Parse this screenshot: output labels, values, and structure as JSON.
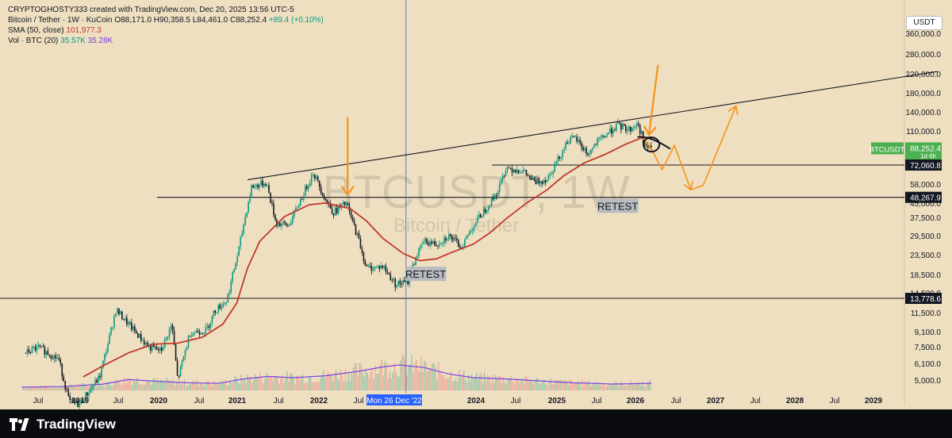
{
  "header": {
    "title_line": "CRYPTOGHOSTY333 created with TradingView.com, Dec 20, 2025 13:56 UTC-5",
    "symbol": "Bitcoin / Tether · 1W · KuCoin",
    "ohlc": "O88,171.0  H90,358.5  L84,461.0  C88,252.4",
    "change": "+89.4 (+0.10%)",
    "sma_label": "SMA (50, close)",
    "sma_value": "101,977.3",
    "vol_label": "Vol · BTC (20)",
    "vol_value1": "35.57K",
    "vol_value2": "35.28K"
  },
  "currency": "USDT",
  "watermark": {
    "main": "BTCUSDT, 1W",
    "sub": "Bitcoin / Tether"
  },
  "footer": {
    "logo_text": "TradingView"
  },
  "colors": {
    "background": "#eedfc0",
    "candle_up": "#089981",
    "candle_down": "#131722",
    "sma": "#c0392b",
    "arrow": "#f7931a",
    "volume_ma": "#7b3fe4",
    "crosshair": "#2962ff",
    "last_price": "#4caf50"
  },
  "chart_data": {
    "type": "candlestick",
    "scale": "log",
    "x_ticks": [
      "Jul",
      "2019",
      "Jul",
      "2020",
      "Jul",
      "2021",
      "Jul",
      "2022",
      "Jul",
      "Mon 26 Dec '22",
      "2024",
      "Jul",
      "2025",
      "Jul",
      "2026",
      "Jul",
      "2027",
      "Jul",
      "2028",
      "Jul",
      "2029"
    ],
    "y_ticks": [
      "360,000.0",
      "280,000.0",
      "220,000.0",
      "180,000.0",
      "140,000.0",
      "110,000.0",
      "58,000.0",
      "45,000.0",
      "37,500.0",
      "29,500.0",
      "23,500.0",
      "18,500.0",
      "14,500.0",
      "11,500.0",
      "9,100.0",
      "7,500.0",
      "6,100.0",
      "5,000.0"
    ],
    "price_labels": [
      {
        "text": "BTCUSDT",
        "value": 88252.4
      },
      {
        "text": "88,252.4",
        "value": 88252.4,
        "sub": "1d 6h"
      },
      {
        "text": "72,060.8",
        "value": 72060.8
      },
      {
        "text": "48,267.9",
        "value": 48267.9
      },
      {
        "text": "13,778.6",
        "value": 13778.6
      }
    ],
    "horizontal_levels": [
      72060.8,
      48267.9,
      13778.6
    ],
    "path_points": [
      [
        2018.35,
        7000
      ],
      [
        2018.5,
        7500
      ],
      [
        2018.75,
        6500
      ],
      [
        2018.88,
        3800
      ],
      [
        2019.0,
        3700
      ],
      [
        2019.25,
        5200
      ],
      [
        2019.45,
        12000
      ],
      [
        2019.6,
        10000
      ],
      [
        2019.85,
        7500
      ],
      [
        2020.0,
        7200
      ],
      [
        2020.13,
        10000
      ],
      [
        2020.2,
        5000
      ],
      [
        2020.35,
        9000
      ],
      [
        2020.55,
        9300
      ],
      [
        2020.65,
        11800
      ],
      [
        2020.8,
        13500
      ],
      [
        2020.95,
        26000
      ],
      [
        2021.0,
        34000
      ],
      [
        2021.1,
        55000
      ],
      [
        2021.28,
        58000
      ],
      [
        2021.4,
        35000
      ],
      [
        2021.55,
        34000
      ],
      [
        2021.7,
        47000
      ],
      [
        2021.85,
        66000
      ],
      [
        2022.0,
        47000
      ],
      [
        2022.1,
        40000
      ],
      [
        2022.25,
        45000
      ],
      [
        2022.4,
        29000
      ],
      [
        2022.5,
        20000
      ],
      [
        2022.7,
        20500
      ],
      [
        2022.85,
        16500
      ],
      [
        2023.0,
        16800
      ],
      [
        2023.1,
        23000
      ],
      [
        2023.2,
        28000
      ],
      [
        2023.35,
        27000
      ],
      [
        2023.5,
        30000
      ],
      [
        2023.65,
        26000
      ],
      [
        2023.8,
        34000
      ],
      [
        2023.95,
        42000
      ],
      [
        2024.1,
        52000
      ],
      [
        2024.2,
        70000
      ],
      [
        2024.4,
        67000
      ],
      [
        2024.55,
        58000
      ],
      [
        2024.7,
        61000
      ],
      [
        2024.85,
        80000
      ],
      [
        2024.95,
        98000
      ],
      [
        2025.05,
        100000
      ],
      [
        2025.2,
        82000
      ],
      [
        2025.3,
        95000
      ],
      [
        2025.45,
        108000
      ],
      [
        2025.55,
        118000
      ],
      [
        2025.7,
        112000
      ],
      [
        2025.8,
        120000
      ],
      [
        2025.85,
        105000
      ],
      [
        2025.9,
        90000
      ],
      [
        2025.97,
        88000
      ]
    ],
    "sma_points": [
      [
        2019.05,
        5200
      ],
      [
        2019.3,
        6000
      ],
      [
        2019.6,
        7000
      ],
      [
        2019.9,
        7800
      ],
      [
        2020.2,
        7900
      ],
      [
        2020.5,
        8500
      ],
      [
        2020.75,
        10000
      ],
      [
        2020.92,
        13000
      ],
      [
        2021.05,
        20000
      ],
      [
        2021.2,
        28000
      ],
      [
        2021.5,
        38000
      ],
      [
        2021.8,
        44000
      ],
      [
        2022.0,
        45000
      ],
      [
        2022.3,
        42000
      ],
      [
        2022.5,
        36000
      ],
      [
        2022.7,
        29000
      ],
      [
        2022.95,
        24000
      ],
      [
        2023.15,
        22000
      ],
      [
        2023.35,
        22500
      ],
      [
        2023.55,
        24500
      ],
      [
        2023.8,
        27000
      ],
      [
        2024.0,
        31000
      ],
      [
        2024.2,
        37000
      ],
      [
        2024.45,
        45000
      ],
      [
        2024.7,
        53000
      ],
      [
        2024.9,
        63000
      ],
      [
        2025.15,
        74000
      ],
      [
        2025.4,
        82000
      ],
      [
        2025.65,
        93000
      ],
      [
        2025.85,
        101000
      ],
      [
        2025.97,
        102000
      ]
    ],
    "trendline": [
      [
        2021.05,
        60000
      ],
      [
        2029.45,
        230000
      ]
    ],
    "volume_ma_points": [
      [
        2018.3,
        0.25
      ],
      [
        2018.8,
        0.3
      ],
      [
        2019.3,
        0.5
      ],
      [
        2019.6,
        0.85
      ],
      [
        2020.0,
        0.7
      ],
      [
        2020.3,
        0.6
      ],
      [
        2020.7,
        0.55
      ],
      [
        2021.0,
        0.9
      ],
      [
        2021.3,
        1.1
      ],
      [
        2021.6,
        1.0
      ],
      [
        2022.0,
        1.15
      ],
      [
        2022.4,
        1.5
      ],
      [
        2022.7,
        1.85
      ],
      [
        2022.9,
        2.0
      ],
      [
        2023.2,
        1.8
      ],
      [
        2023.5,
        1.3
      ],
      [
        2023.8,
        1.0
      ],
      [
        2024.2,
        0.9
      ],
      [
        2024.6,
        0.75
      ],
      [
        2025.0,
        0.6
      ],
      [
        2025.5,
        0.5
      ],
      [
        2025.97,
        0.55
      ]
    ],
    "annotations": [
      {
        "text": "RETEST",
        "x": 2023.22,
        "y": 18500
      },
      {
        "text": "RETEST",
        "x": 2025.56,
        "y": 43000
      }
    ],
    "crosshair_x": 2022.98,
    "arrows": [
      {
        "from": [
          2022.27,
          130000
        ],
        "to": [
          2022.27,
          50000
        ]
      },
      {
        "from": [
          2026.05,
          250000
        ],
        "to": [
          2025.94,
          105000
        ]
      }
    ],
    "projection": [
      [
        2025.87,
        100000
      ],
      [
        2025.97,
        88000
      ],
      [
        2026.1,
        68000
      ],
      [
        2026.25,
        92000
      ],
      [
        2026.45,
        53000
      ],
      [
        2026.6,
        56000
      ],
      [
        2027.0,
        150000
      ]
    ]
  }
}
